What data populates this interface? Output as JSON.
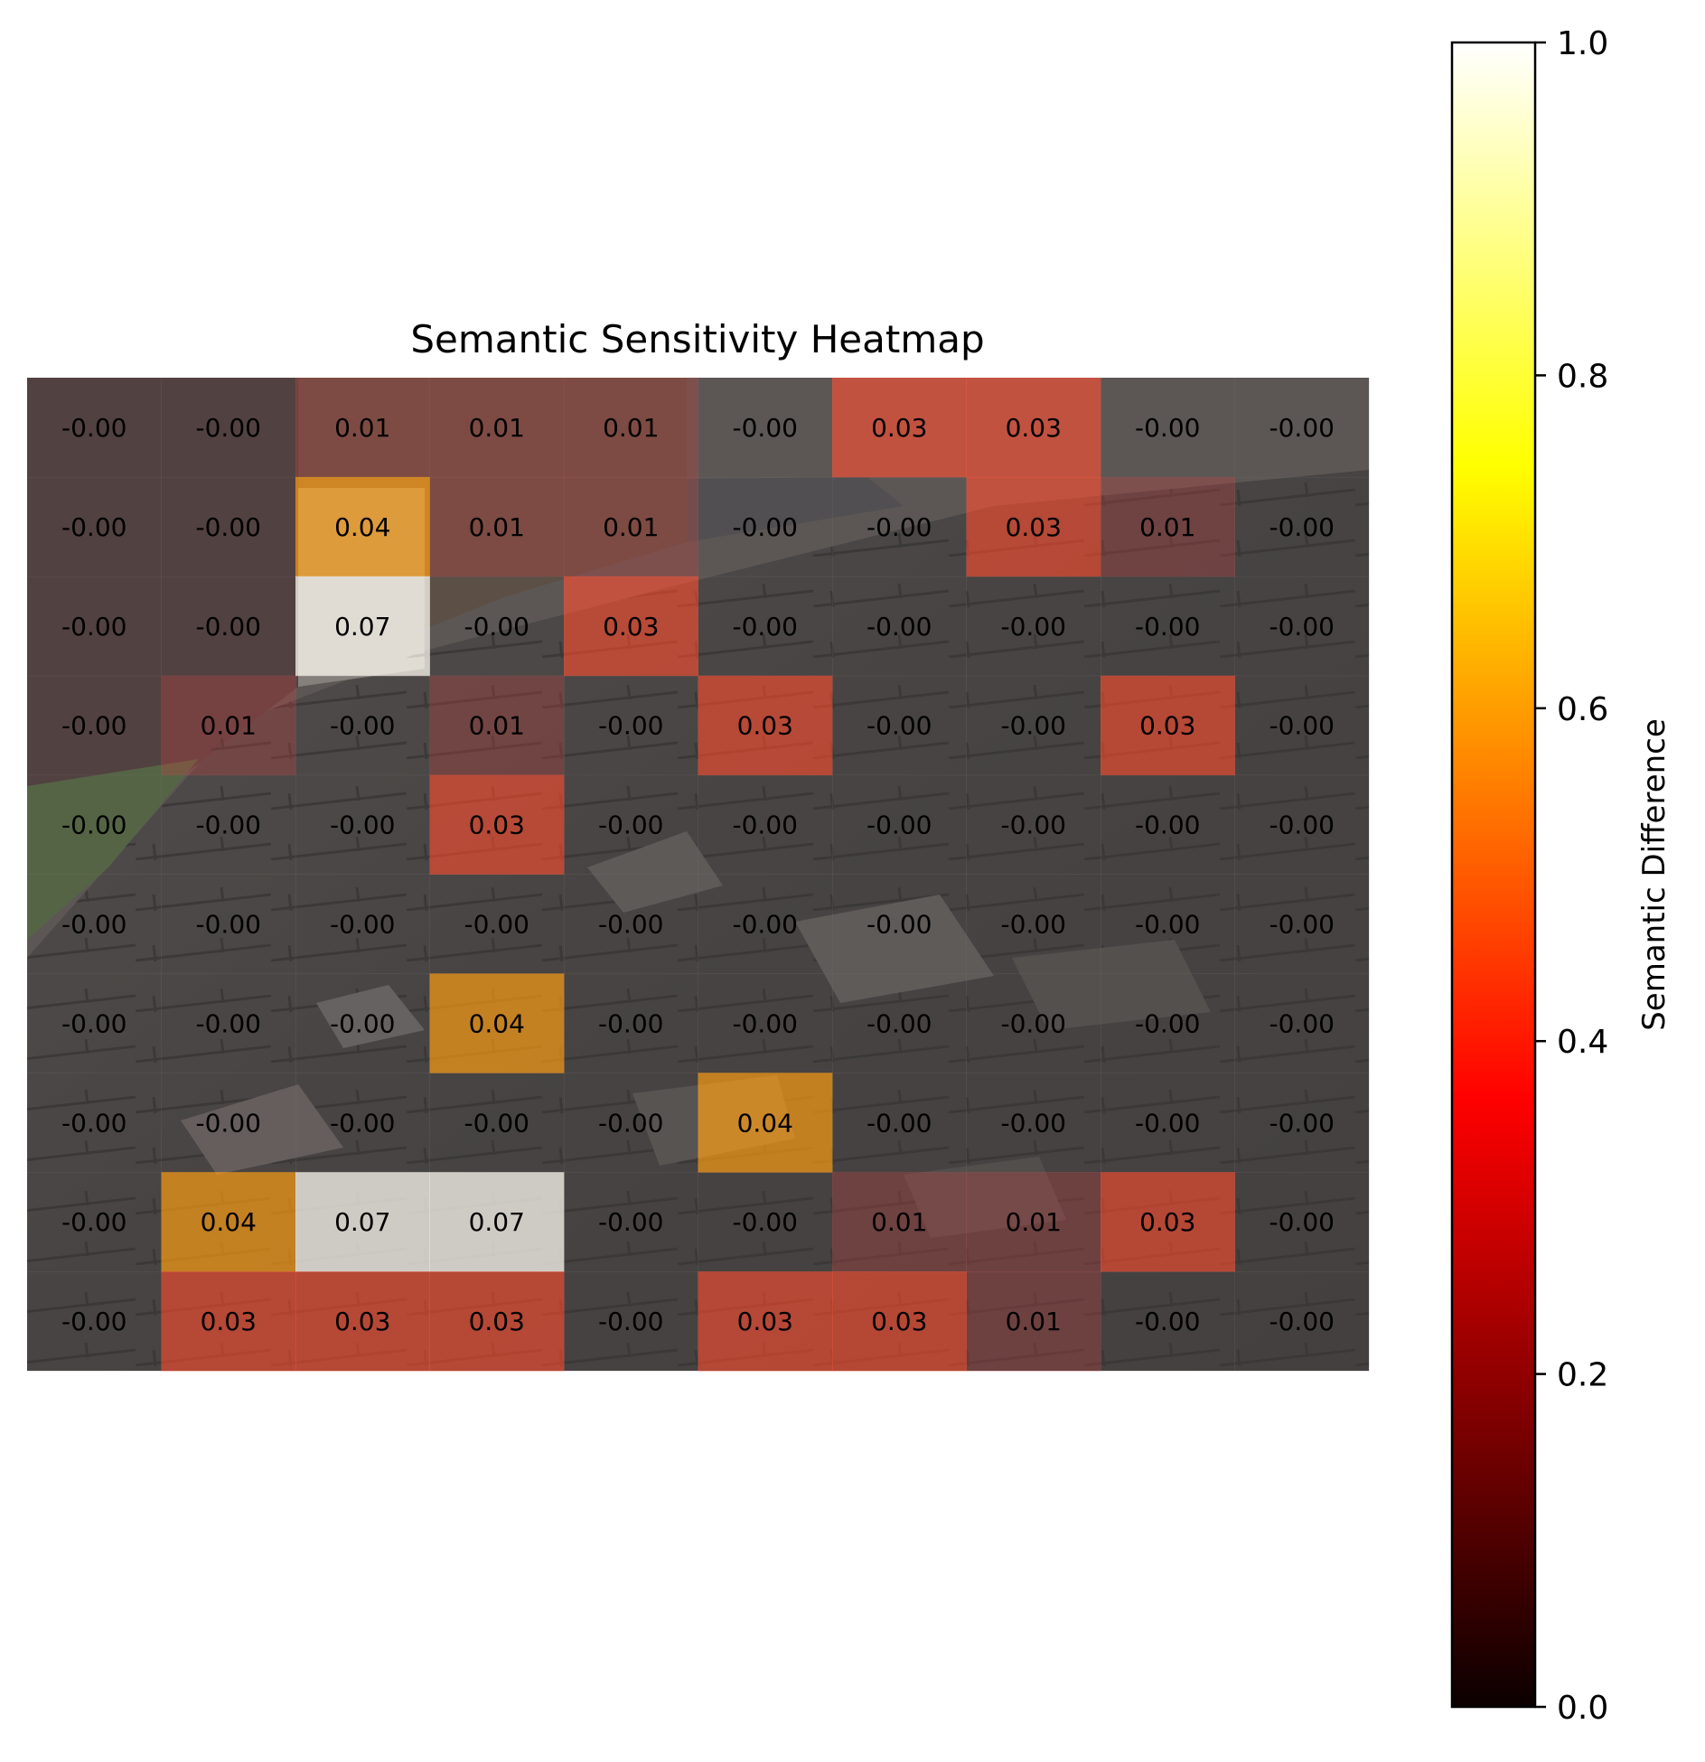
{
  "chart_data": {
    "type": "heatmap",
    "title": "Semantic Sensitivity Heatmap",
    "rows": 10,
    "cols": 10,
    "background": "photo of a damaged asphalt-shingle roof with trees and a neighbouring house in the top-left",
    "values": [
      [
        "-0.00",
        "-0.00",
        "0.01",
        "0.01",
        "0.01",
        "-0.00",
        "0.03",
        "0.03",
        "-0.00",
        "-0.00"
      ],
      [
        "-0.00",
        "-0.00",
        "0.04",
        "0.01",
        "0.01",
        "-0.00",
        "-0.00",
        "0.03",
        "0.01",
        "-0.00"
      ],
      [
        "-0.00",
        "-0.00",
        "0.07",
        "-0.00",
        "0.03",
        "-0.00",
        "-0.00",
        "-0.00",
        "-0.00",
        "-0.00"
      ],
      [
        "-0.00",
        "0.01",
        "-0.00",
        "0.01",
        "-0.00",
        "0.03",
        "-0.00",
        "-0.00",
        "0.03",
        "-0.00"
      ],
      [
        "-0.00",
        "-0.00",
        "-0.00",
        "0.03",
        "-0.00",
        "-0.00",
        "-0.00",
        "-0.00",
        "-0.00",
        "-0.00"
      ],
      [
        "-0.00",
        "-0.00",
        "-0.00",
        "-0.00",
        "-0.00",
        "-0.00",
        "-0.00",
        "-0.00",
        "-0.00",
        "-0.00"
      ],
      [
        "-0.00",
        "-0.00",
        "-0.00",
        "0.04",
        "-0.00",
        "-0.00",
        "-0.00",
        "-0.00",
        "-0.00",
        "-0.00"
      ],
      [
        "-0.00",
        "-0.00",
        "-0.00",
        "-0.00",
        "-0.00",
        "0.04",
        "-0.00",
        "-0.00",
        "-0.00",
        "-0.00"
      ],
      [
        "-0.00",
        "0.04",
        "0.07",
        "0.07",
        "-0.00",
        "-0.00",
        "0.01",
        "0.01",
        "0.03",
        "-0.00"
      ],
      [
        "-0.00",
        "0.03",
        "0.03",
        "0.03",
        "-0.00",
        "0.03",
        "0.03",
        "0.01",
        "-0.00",
        "-0.00"
      ]
    ],
    "colorbar": {
      "label": "Semantic Difference",
      "colormap": "hot",
      "range": [
        0,
        1
      ],
      "ticks": [
        "0.0",
        "0.2",
        "0.4",
        "0.6",
        "0.8",
        "1.0"
      ]
    },
    "colors": {
      "zero": "#7d7776",
      "v001": "#a85a58",
      "v003": "#ff5a3e",
      "v004": "#ffa320",
      "v007": "#f3efe7"
    }
  }
}
